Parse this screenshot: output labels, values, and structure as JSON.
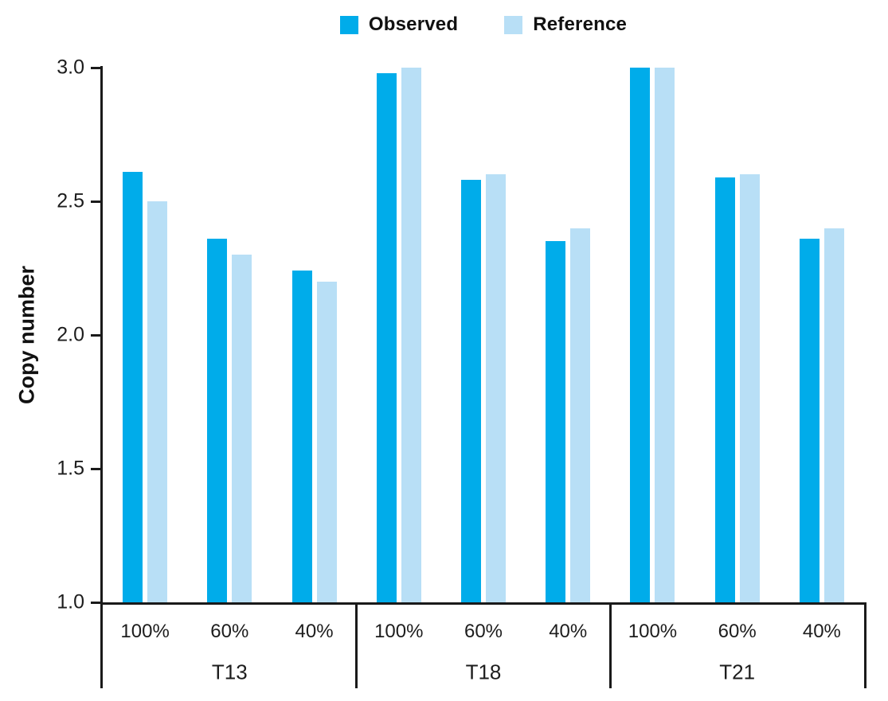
{
  "figure": {
    "background": "#ffffff"
  },
  "chart_data": {
    "type": "bar",
    "title": "",
    "xlabel": "",
    "ylabel": "Copy number",
    "ylim": [
      1.0,
      3.0
    ],
    "ytick_labels": [
      "1.0",
      "1.5",
      "2.0",
      "2.5",
      "3.0"
    ],
    "ytick_values": [
      1.0,
      1.5,
      2.0,
      2.5,
      3.0
    ],
    "grid": false,
    "legend_position": "top-center",
    "axis_color": "#1a1a1a",
    "groups": [
      "T13",
      "T18",
      "T21"
    ],
    "categories": [
      "100%",
      "60%",
      "40%"
    ],
    "series": [
      {
        "name": "Observed",
        "color": "#00ACEA",
        "values": [
          [
            2.61,
            2.36,
            2.24
          ],
          [
            2.98,
            2.58,
            2.35
          ],
          [
            3.0,
            2.59,
            2.36
          ]
        ]
      },
      {
        "name": "Reference",
        "color": "#B8DFF6",
        "values": [
          [
            2.5,
            2.3,
            2.2
          ],
          [
            3.0,
            2.6,
            2.4
          ],
          [
            3.0,
            2.6,
            2.4
          ]
        ]
      }
    ]
  }
}
